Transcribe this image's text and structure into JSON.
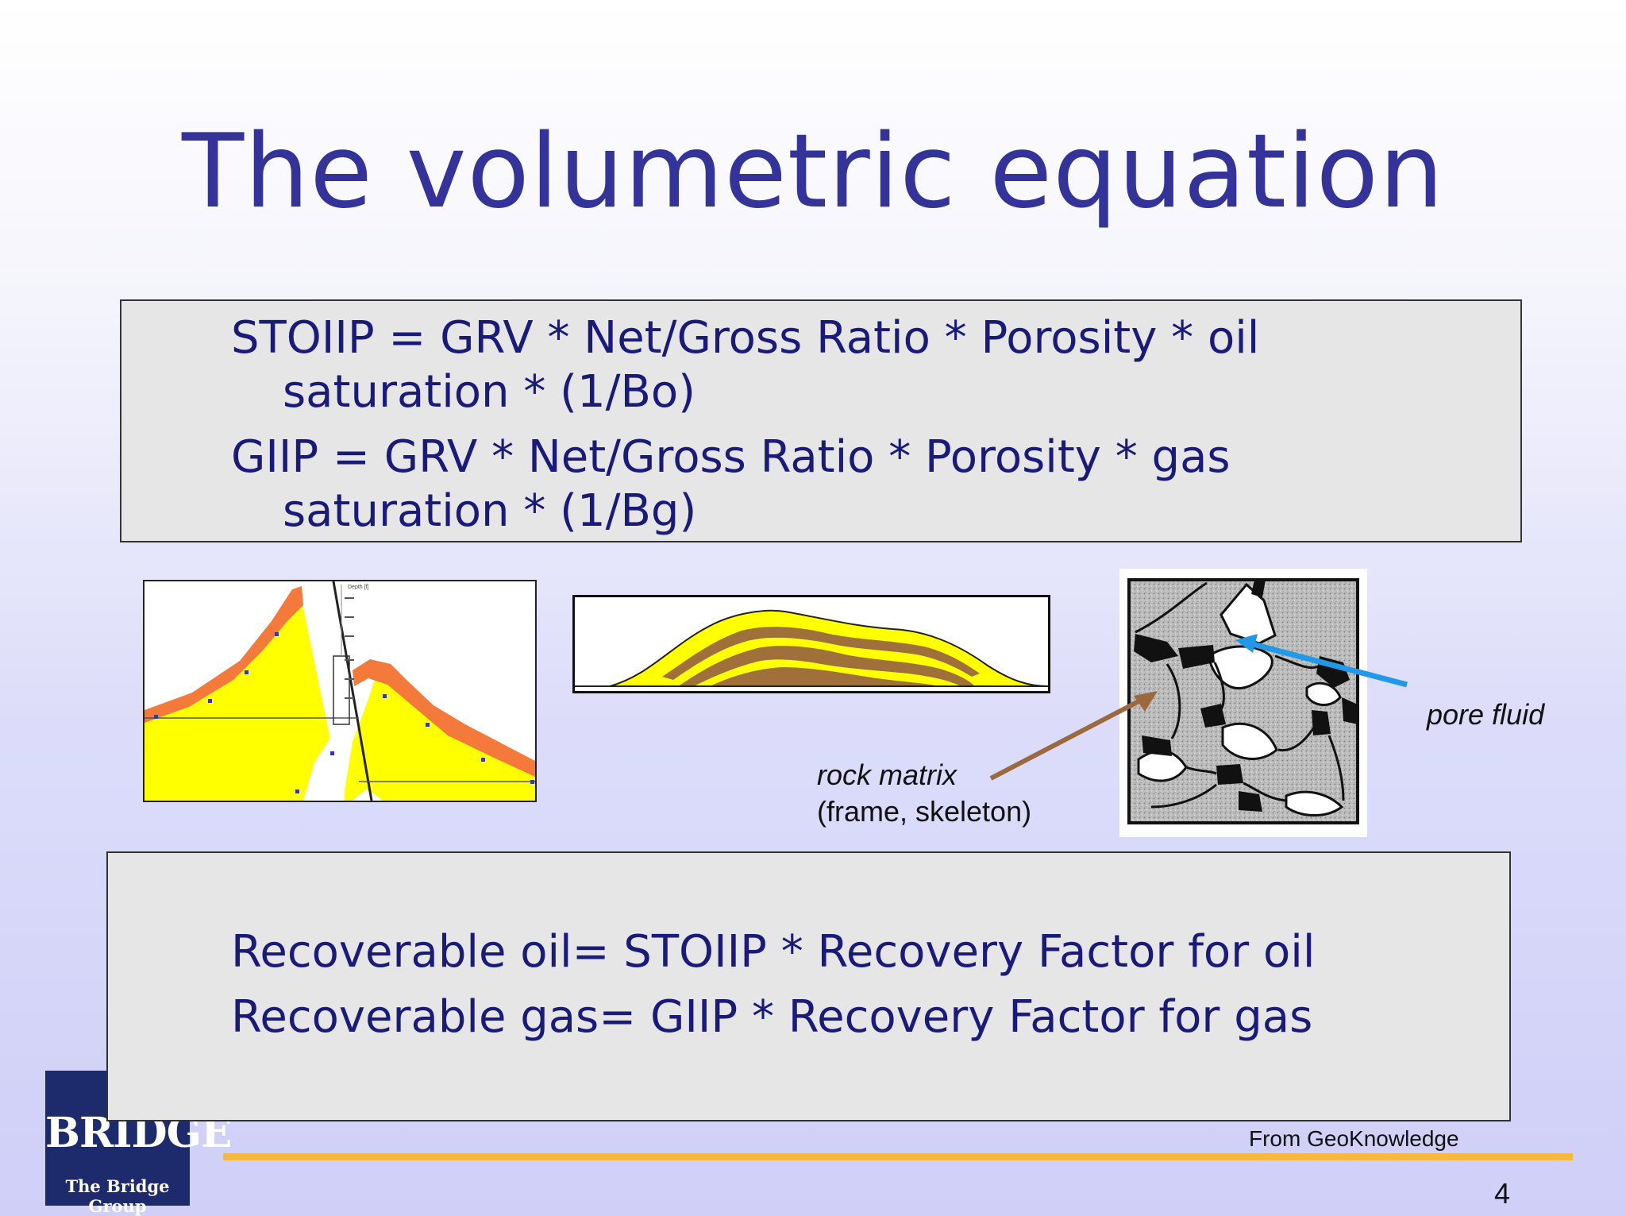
{
  "slide": {
    "title": "The volumetric equation",
    "equations": {
      "stoiip_line1": "STOIIP = GRV * Net/Gross Ratio * Porosity * oil",
      "stoiip_line2": "saturation * (1/Bo)",
      "giip_line1": "GIIP = GRV * Net/Gross Ratio * Porosity * gas",
      "giip_line2": "saturation * (1/Bg)"
    },
    "figures": {
      "rock_matrix_label": "rock matrix",
      "rock_matrix_sub": "(frame, skeleton)",
      "pore_fluid_label": "pore fluid",
      "depth_axis_label": "Depth [f]"
    },
    "recovery": {
      "oil": "Recoverable oil= STOIIP * Recovery Factor for oil",
      "gas": "Recoverable gas= GIIP * Recovery Factor for gas"
    },
    "logo": {
      "main": "BRIDGE",
      "sub": "The Bridge Group"
    },
    "source": "From GeoKnowledge",
    "page_number": "4",
    "colors": {
      "title": "#333399",
      "equation_text": "#1a1a7a",
      "box_fill": "#e6e6e6",
      "rule": "#f5b942",
      "reservoir_yellow": "#ffff00",
      "seal_orange": "#f47a3c",
      "shale_brown": "#a0703a",
      "arrow_brown": "#9a6a3e",
      "arrow_blue": "#2299e8",
      "logo_navy": "#1d2a6b"
    }
  }
}
